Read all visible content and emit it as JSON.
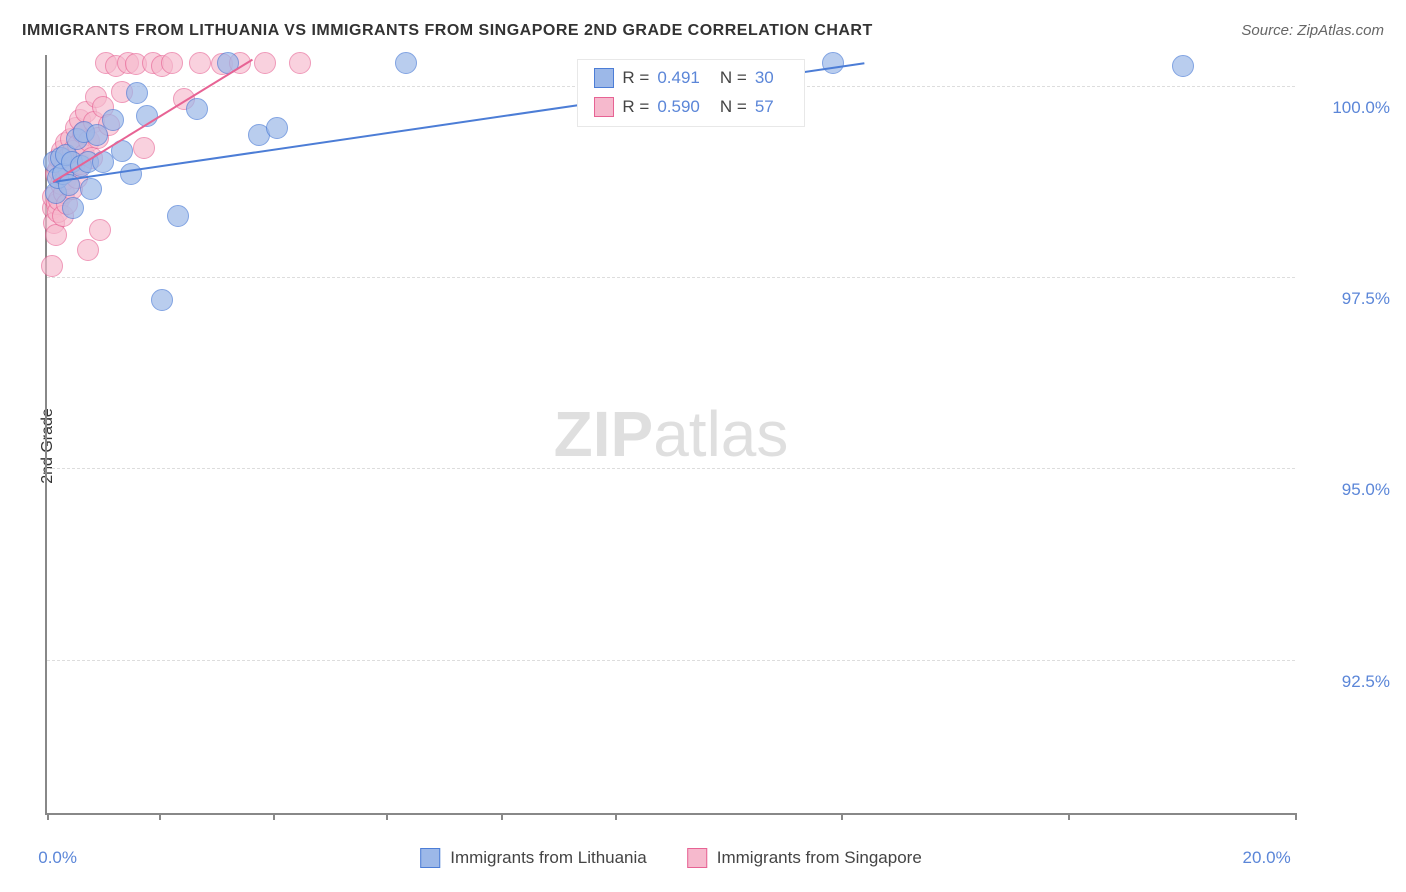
{
  "title": "IMMIGRANTS FROM LITHUANIA VS IMMIGRANTS FROM SINGAPORE 2ND GRADE CORRELATION CHART",
  "title_fontsize": 16,
  "title_color": "#333333",
  "source_label": "Source:",
  "source_name": "ZipAtlas.com",
  "source_fontsize": 15,
  "source_color": "#666666",
  "ylabel": "2nd Grade",
  "ylabel_fontsize": 16,
  "ylabel_color": "#333333",
  "watermark_left": "ZIP",
  "watermark_right": "atlas",
  "chart": {
    "type": "scatter",
    "xlim": [
      0,
      20
    ],
    "ylim": [
      90.5,
      100.4
    ],
    "x_ticks_pct": [
      0,
      9.0,
      18.1,
      27.2,
      36.4,
      45.5,
      63.6,
      81.8,
      100
    ],
    "x_labels": [
      {
        "pos_pct": 0.5,
        "text": "0.0%"
      },
      {
        "pos_pct": 97,
        "text": "20.0%"
      }
    ],
    "x_label_color": "#5b86d8",
    "x_label_fontsize": 17,
    "y_gridlines": [
      92.5,
      95.0,
      97.5,
      100.0
    ],
    "y_labels": [
      "92.5%",
      "95.0%",
      "97.5%",
      "100.0%"
    ],
    "y_label_color": "#5b86d8",
    "y_label_fontsize": 17,
    "grid_color": "#dddddd",
    "axis_color": "#888888",
    "background_color": "#ffffff",
    "marker_radius": 10,
    "marker_stroke_width": 1,
    "marker_fill_opacity": 0.35,
    "series": [
      {
        "name": "Immigrants from Lithuania",
        "fill": "#9cb8e8",
        "stroke": "#4c7dd6",
        "fill_opacity": 0.45,
        "stats": {
          "r_label": "R =",
          "r": "0.491",
          "n_label": "N =",
          "n": "30"
        },
        "trend": {
          "x1": 0.1,
          "y1": 98.75,
          "x2": 13.1,
          "y2": 100.3,
          "width": 2,
          "color": "#4c7dd6"
        },
        "points": [
          [
            0.12,
            99.0
          ],
          [
            0.14,
            98.6
          ],
          [
            0.18,
            98.8
          ],
          [
            0.22,
            99.05
          ],
          [
            0.26,
            98.85
          ],
          [
            0.3,
            99.1
          ],
          [
            0.35,
            98.7
          ],
          [
            0.4,
            99.0
          ],
          [
            0.42,
            98.4
          ],
          [
            0.48,
            99.3
          ],
          [
            0.55,
            98.95
          ],
          [
            0.6,
            99.4
          ],
          [
            0.65,
            99.0
          ],
          [
            0.7,
            98.65
          ],
          [
            0.8,
            99.35
          ],
          [
            0.9,
            99.0
          ],
          [
            1.05,
            99.55
          ],
          [
            1.2,
            99.15
          ],
          [
            1.35,
            98.85
          ],
          [
            1.45,
            99.9
          ],
          [
            1.6,
            99.6
          ],
          [
            1.85,
            97.2
          ],
          [
            2.1,
            98.3
          ],
          [
            2.4,
            99.7
          ],
          [
            2.9,
            100.3
          ],
          [
            3.4,
            99.35
          ],
          [
            3.68,
            99.45
          ],
          [
            5.75,
            100.3
          ],
          [
            12.6,
            100.3
          ],
          [
            18.2,
            100.25
          ]
        ]
      },
      {
        "name": "Immigrants from Singapore",
        "fill": "#f6b9cd",
        "stroke": "#e76394",
        "fill_opacity": 0.4,
        "stats": {
          "r_label": "R =",
          "r": "0.590",
          "n_label": "N =",
          "n": "57"
        },
        "trend": {
          "x1": 0.1,
          "y1": 98.75,
          "x2": 3.3,
          "y2": 100.35,
          "width": 2,
          "color": "#e76394"
        },
        "points": [
          [
            0.08,
            97.65
          ],
          [
            0.1,
            98.4
          ],
          [
            0.1,
            98.55
          ],
          [
            0.12,
            98.2
          ],
          [
            0.14,
            98.05
          ],
          [
            0.15,
            98.85
          ],
          [
            0.16,
            98.45
          ],
          [
            0.18,
            98.9
          ],
          [
            0.18,
            98.35
          ],
          [
            0.2,
            99.05
          ],
          [
            0.2,
            98.5
          ],
          [
            0.22,
            98.72
          ],
          [
            0.24,
            99.15
          ],
          [
            0.25,
            98.3
          ],
          [
            0.27,
            98.92
          ],
          [
            0.28,
            98.6
          ],
          [
            0.3,
            99.25
          ],
          [
            0.3,
            98.78
          ],
          [
            0.32,
            98.45
          ],
          [
            0.34,
            99.05
          ],
          [
            0.36,
            98.88
          ],
          [
            0.38,
            99.3
          ],
          [
            0.4,
            98.65
          ],
          [
            0.42,
            99.15
          ],
          [
            0.44,
            98.95
          ],
          [
            0.46,
            99.45
          ],
          [
            0.48,
            98.8
          ],
          [
            0.5,
            99.22
          ],
          [
            0.53,
            99.55
          ],
          [
            0.55,
            98.98
          ],
          [
            0.58,
            99.38
          ],
          [
            0.6,
            99.1
          ],
          [
            0.63,
            99.65
          ],
          [
            0.65,
            97.85
          ],
          [
            0.68,
            99.28
          ],
          [
            0.72,
            99.05
          ],
          [
            0.75,
            99.52
          ],
          [
            0.78,
            99.85
          ],
          [
            0.82,
            99.32
          ],
          [
            0.85,
            98.12
          ],
          [
            0.9,
            99.72
          ],
          [
            0.95,
            100.3
          ],
          [
            1.0,
            99.48
          ],
          [
            1.1,
            100.25
          ],
          [
            1.2,
            99.92
          ],
          [
            1.3,
            100.3
          ],
          [
            1.42,
            100.28
          ],
          [
            1.55,
            99.18
          ],
          [
            1.7,
            100.3
          ],
          [
            1.85,
            100.25
          ],
          [
            2.0,
            100.3
          ],
          [
            2.2,
            99.82
          ],
          [
            2.45,
            100.3
          ],
          [
            2.8,
            100.28
          ],
          [
            3.1,
            100.3
          ],
          [
            3.5,
            100.3
          ],
          [
            4.05,
            100.3
          ]
        ]
      }
    ],
    "stats_box": {
      "left_pct": 42.5,
      "top_pct": 0.5
    },
    "legend_swatch_size": 18
  }
}
